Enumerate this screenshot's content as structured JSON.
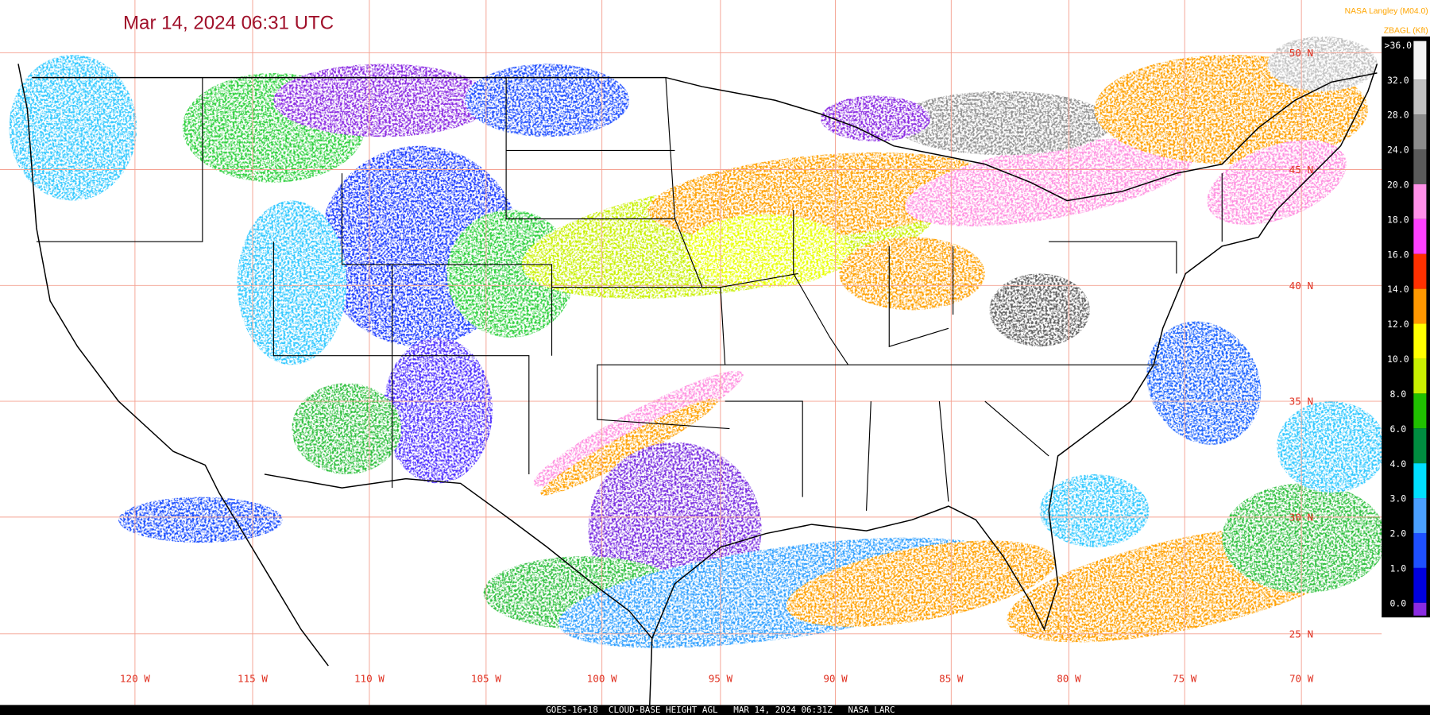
{
  "header": {
    "title": "Mar 14, 2024 06:31 UTC",
    "credit": "NASA Langley (M04.0)"
  },
  "legend": {
    "title": "ZBAGL (Kft)",
    "entries": [
      {
        "label": ">36.0",
        "color": "#f4f4f4"
      },
      {
        "label": "32.0",
        "color": "#c0c0c0"
      },
      {
        "label": "28.0",
        "color": "#8c8c8c"
      },
      {
        "label": "24.0",
        "color": "#5a5a5a"
      },
      {
        "label": "20.0",
        "color": "#ff90e8"
      },
      {
        "label": "18.0",
        "color": "#ff40ff"
      },
      {
        "label": "16.0",
        "color": "#ff3000"
      },
      {
        "label": "14.0",
        "color": "#ff9800"
      },
      {
        "label": "12.0",
        "color": "#ffff00"
      },
      {
        "label": "10.0",
        "color": "#c8f000"
      },
      {
        "label": "8.0",
        "color": "#20c000"
      },
      {
        "label": "6.0",
        "color": "#008c40"
      },
      {
        "label": "4.0",
        "color": "#00e0ff"
      },
      {
        "label": "3.0",
        "color": "#4aa0ff"
      },
      {
        "label": "2.0",
        "color": "#1e50ff"
      },
      {
        "label": "1.0",
        "color": "#0000e0"
      },
      {
        "label": "0.0",
        "color": "#8a2be2"
      }
    ]
  },
  "latitude_labels": [
    "50 N",
    "45 N",
    "40 N",
    "35 N",
    "30 N",
    "25 N"
  ],
  "longitude_labels": [
    "120 W",
    "115 W",
    "110 W",
    "105 W",
    "100 W",
    "95 W",
    "90 W",
    "85 W",
    "80 W",
    "75 W",
    "70 W"
  ],
  "footer": "GOES-16+18  CLOUD-BASE HEIGHT AGL   MAR 14, 2024 06:31Z   NASA LARC"
}
